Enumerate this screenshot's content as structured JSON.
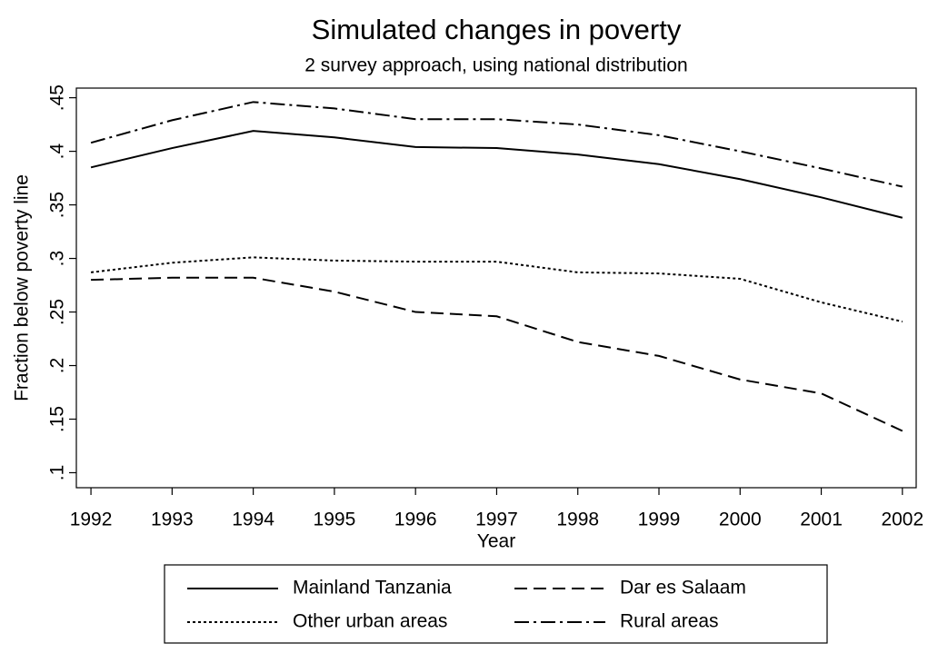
{
  "chart_data": {
    "type": "line",
    "title": "Simulated changes in poverty",
    "subtitle": "2 survey approach, using national distribution",
    "x_label": "Year",
    "y_label": "Fraction below poverty line",
    "x": [
      1992,
      1993,
      1994,
      1995,
      1996,
      1997,
      1998,
      1999,
      2000,
      2001,
      2002
    ],
    "xlim": [
      1991.82,
      2002.17
    ],
    "xticks": [
      1992,
      1993,
      1994,
      1995,
      1996,
      1997,
      1998,
      1999,
      2000,
      2001,
      2002
    ],
    "ylim": [
      0.086,
      0.459
    ],
    "yticks": [
      {
        "value": 0.1,
        "label": ".1"
      },
      {
        "value": 0.15,
        "label": ".15"
      },
      {
        "value": 0.2,
        "label": ".2"
      },
      {
        "value": 0.25,
        "label": ".25"
      },
      {
        "value": 0.3,
        "label": ".3"
      },
      {
        "value": 0.35,
        "label": ".35"
      },
      {
        "value": 0.4,
        "label": ".4"
      },
      {
        "value": 0.45,
        "label": ".45"
      }
    ],
    "grid": false,
    "legend_position": "bottom",
    "series": [
      {
        "name": "Mainland Tanzania",
        "color": "#000000",
        "dash": "none",
        "values": [
          0.385,
          0.403,
          0.419,
          0.413,
          0.404,
          0.403,
          0.397,
          0.388,
          0.374,
          0.357,
          0.338
        ]
      },
      {
        "name": "Dar es Salaam",
        "color": "#000000",
        "dash": "14 7",
        "values": [
          0.28,
          0.282,
          0.282,
          0.269,
          0.25,
          0.246,
          0.222,
          0.209,
          0.187,
          0.174,
          0.139
        ]
      },
      {
        "name": "Other urban areas",
        "color": "#000000",
        "dash": "3 3",
        "values": [
          0.287,
          0.296,
          0.301,
          0.298,
          0.297,
          0.297,
          0.287,
          0.286,
          0.281,
          0.259,
          0.241
        ]
      },
      {
        "name": "Rural areas",
        "color": "#000000",
        "dash": "16 5 3 5",
        "values": [
          0.408,
          0.429,
          0.446,
          0.44,
          0.43,
          0.43,
          0.425,
          0.415,
          0.4,
          0.384,
          0.367
        ]
      }
    ]
  }
}
